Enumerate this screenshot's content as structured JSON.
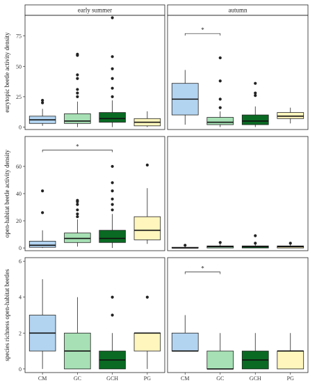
{
  "chart_data": {
    "type": "boxplot",
    "facet_columns": [
      "early summer",
      "autumn"
    ],
    "categories": [
      "CM",
      "GC",
      "GCH",
      "PG"
    ],
    "colors": {
      "CM": "#b3d4f1",
      "GC": "#a6e0b4",
      "GCH": "#0a6a23",
      "PG": "#fff6bd"
    },
    "rows": [
      {
        "ylabel": "eurytopic beetle activity density",
        "ylim": [
          -2,
          92
        ],
        "yticks": [
          0,
          25,
          50,
          75
        ],
        "panels": [
          {
            "facet": "early summer",
            "boxes": [
              {
                "category": "CM",
                "min": 1,
                "q1": 3,
                "median": 6,
                "q3": 9,
                "max": 15,
                "outliers": [
                  20,
                  22
                ]
              },
              {
                "category": "GC",
                "min": 0,
                "q1": 3,
                "median": 5,
                "q3": 11,
                "max": 21,
                "outliers": [
                  25,
                  28,
                  31,
                  40,
                  43,
                  59,
                  60
                ]
              },
              {
                "category": "GCH",
                "min": 0,
                "q1": 4,
                "median": 7,
                "q3": 12,
                "max": 22,
                "outliers": [
                  25,
                  32,
                  40,
                  48,
                  58,
                  90
                ]
              },
              {
                "category": "PG",
                "min": 0,
                "q1": 1,
                "median": 4,
                "q3": 7,
                "max": 13,
                "outliers": []
              }
            ],
            "significance": []
          },
          {
            "facet": "autumn",
            "boxes": [
              {
                "category": "CM",
                "min": 2,
                "q1": 10,
                "median": 23,
                "q3": 36,
                "max": 47,
                "outliers": []
              },
              {
                "category": "GC",
                "min": 0,
                "q1": 2,
                "median": 4,
                "q3": 8,
                "max": 13,
                "outliers": [
                  16,
                  23,
                  38,
                  57
                ]
              },
              {
                "category": "GCH",
                "min": 0,
                "q1": 2,
                "median": 5,
                "q3": 10,
                "max": 17,
                "outliers": [
                  26,
                  28,
                  36
                ]
              },
              {
                "category": "PG",
                "min": 3,
                "q1": 7,
                "median": 9,
                "q3": 12,
                "max": 16,
                "outliers": []
              }
            ],
            "significance": [
              {
                "from": "CM",
                "to": "GC",
                "y": 77,
                "label": "*"
              }
            ]
          }
        ]
      },
      {
        "ylabel": "open-habitat beetle activity density",
        "ylim": [
          -2,
          82
        ],
        "yticks": [
          0,
          20,
          40,
          60
        ],
        "panels": [
          {
            "facet": "early summer",
            "boxes": [
              {
                "category": "CM",
                "min": 0,
                "q1": 0.5,
                "median": 2,
                "q3": 5,
                "max": 13,
                "outliers": [
                  26,
                  42
                ]
              },
              {
                "category": "GC",
                "min": 1,
                "q1": 4,
                "median": 7,
                "q3": 11,
                "max": 21,
                "outliers": [
                  23,
                  25,
                  28,
                  32,
                  34,
                  35
                ]
              },
              {
                "category": "GCH",
                "min": 0,
                "q1": 4,
                "median": 7,
                "q3": 13,
                "max": 25,
                "outliers": [
                  28,
                  32,
                  36,
                  42,
                  48,
                  60
                ]
              },
              {
                "category": "PG",
                "min": 3,
                "q1": 6,
                "median": 13,
                "q3": 23,
                "max": 44,
                "outliers": [
                  61
                ]
              }
            ],
            "significance": [
              {
                "from": "CM",
                "to": "GCH",
                "y": 72,
                "label": "*"
              }
            ]
          },
          {
            "facet": "autumn",
            "boxes": [
              {
                "category": "CM",
                "min": 0,
                "q1": 0,
                "median": 0,
                "q3": 0.5,
                "max": 1,
                "outliers": [
                  2
                ]
              },
              {
                "category": "GC",
                "min": 0,
                "q1": 0,
                "median": 1,
                "q3": 1.5,
                "max": 3,
                "outliers": [
                  4
                ]
              },
              {
                "category": "GCH",
                "min": 0,
                "q1": 0,
                "median": 1,
                "q3": 1.5,
                "max": 3,
                "outliers": [
                  3.5,
                  9
                ]
              },
              {
                "category": "PG",
                "min": 0,
                "q1": 0,
                "median": 1,
                "q3": 1.5,
                "max": 3,
                "outliers": [
                  3.5
                ]
              }
            ],
            "significance": []
          }
        ]
      },
      {
        "ylabel": "species richness open-habitat beetles",
        "ylim": [
          -0.2,
          6.2
        ],
        "yticks": [
          0,
          2,
          4,
          6
        ],
        "panels": [
          {
            "facet": "early summer",
            "boxes": [
              {
                "category": "CM",
                "min": 0,
                "q1": 1,
                "median": 2,
                "q3": 3,
                "max": 5,
                "outliers": []
              },
              {
                "category": "GC",
                "min": 0,
                "q1": 0,
                "median": 1,
                "q3": 2,
                "max": 4,
                "outliers": []
              },
              {
                "category": "GCH",
                "min": 0,
                "q1": 0,
                "median": 0.5,
                "q3": 1,
                "max": 2,
                "outliers": [
                  3,
                  4
                ]
              },
              {
                "category": "PG",
                "min": 0,
                "q1": 1,
                "median": 2,
                "q3": 2,
                "max": 2,
                "outliers": [
                  4
                ]
              }
            ],
            "significance": []
          },
          {
            "facet": "autumn",
            "boxes": [
              {
                "category": "CM",
                "min": 1,
                "q1": 1,
                "median": 1,
                "q3": 2,
                "max": 3,
                "outliers": []
              },
              {
                "category": "GC",
                "min": 0,
                "q1": 0,
                "median": 0,
                "q3": 1,
                "max": 2,
                "outliers": []
              },
              {
                "category": "GCH",
                "min": 0,
                "q1": 0,
                "median": 0.5,
                "q3": 1,
                "max": 2,
                "outliers": []
              },
              {
                "category": "PG",
                "min": 0,
                "q1": 0,
                "median": 1,
                "q3": 1,
                "max": 2,
                "outliers": []
              }
            ],
            "significance": [
              {
                "from": "CM",
                "to": "GC",
                "y": 5.4,
                "label": "*"
              }
            ]
          }
        ]
      }
    ]
  }
}
